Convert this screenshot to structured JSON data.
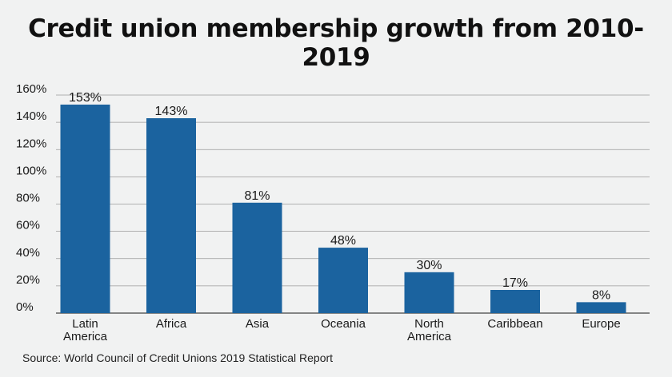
{
  "title": "Credit union membership growth from 2010-2019",
  "source": "Source: World Council of Credit Unions 2019 Statistical Report",
  "colors": {
    "bar": "#1b639f",
    "grid": "#9a9a9a",
    "background": "#f1f2f2"
  },
  "chart_data": {
    "type": "bar",
    "categories": [
      [
        "Latin",
        "America"
      ],
      [
        "Africa"
      ],
      [
        "Asia"
      ],
      [
        "Oceania"
      ],
      [
        "North",
        "America"
      ],
      [
        "Caribbean"
      ],
      [
        "Europe"
      ]
    ],
    "values": [
      153,
      143,
      81,
      48,
      30,
      17,
      8
    ],
    "data_labels": [
      "153%",
      "143%",
      "81%",
      "48%",
      "30%",
      "17%",
      "8%"
    ],
    "y_ticks": [
      0,
      20,
      40,
      60,
      80,
      100,
      120,
      140,
      160
    ],
    "y_tick_labels": [
      "0%",
      "20%",
      "40%",
      "60%",
      "80%",
      "100%",
      "120%",
      "140%",
      "160%"
    ],
    "ylim": [
      0,
      160
    ],
    "grid": true,
    "xlabel": "",
    "ylabel": ""
  }
}
